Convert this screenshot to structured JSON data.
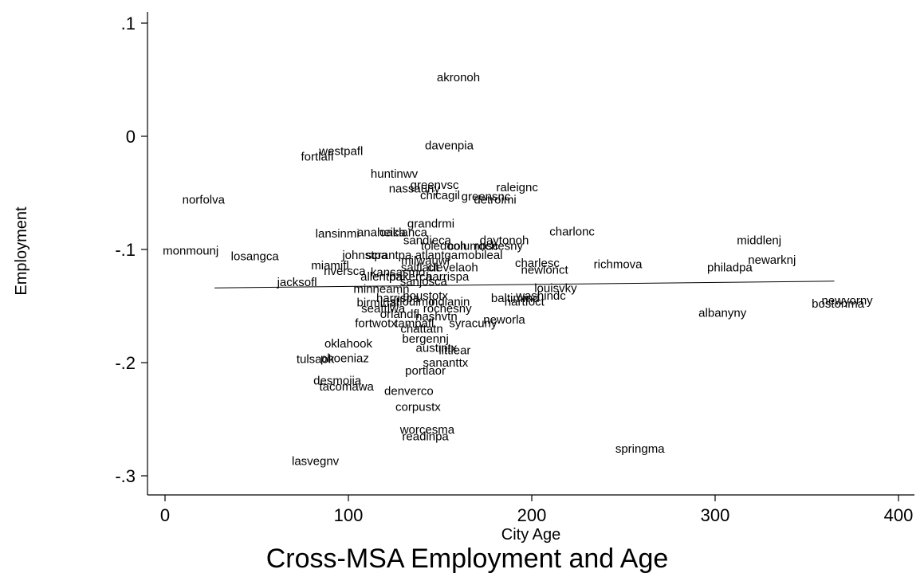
{
  "chart_data": {
    "type": "scatter",
    "title": "Cross-MSA Employment and Age",
    "xlabel": "City Age",
    "ylabel": "Employment",
    "xlim": [
      0,
      410
    ],
    "ylim": [
      -0.318,
      0.12
    ],
    "x_ticks": [
      0,
      100,
      200,
      300,
      400
    ],
    "x_tick_labels": [
      "0",
      "100",
      "200",
      "300",
      "400"
    ],
    "y_ticks": [
      0.1,
      0,
      -0.1,
      -0.2,
      -0.3
    ],
    "y_tick_labels": [
      ".1",
      "0",
      "-.1",
      "-.2",
      "-.3"
    ],
    "grid": false,
    "marker": "label",
    "points": [
      {
        "label": "akronoh",
        "x": 160,
        "y": 0.052
      },
      {
        "label": "davenpia",
        "x": 155,
        "y": -0.008
      },
      {
        "label": "westpafl",
        "x": 96,
        "y": -0.013
      },
      {
        "label": "fortlafl",
        "x": 83,
        "y": -0.018
      },
      {
        "label": "huntinwv",
        "x": 125,
        "y": -0.033
      },
      {
        "label": "greenvsc",
        "x": 147,
        "y": -0.043
      },
      {
        "label": "raleignc",
        "x": 192,
        "y": -0.045
      },
      {
        "label": "nassauny",
        "x": 136,
        "y": -0.046
      },
      {
        "label": "chicagil",
        "x": 150,
        "y": -0.052
      },
      {
        "label": "greensnc",
        "x": 175,
        "y": -0.053
      },
      {
        "label": "detroimi",
        "x": 180,
        "y": -0.056
      },
      {
        "label": "norfolva",
        "x": 21,
        "y": -0.056
      },
      {
        "label": "grandrmi",
        "x": 145,
        "y": -0.077
      },
      {
        "label": "charlonc",
        "x": 222,
        "y": -0.084
      },
      {
        "label": "lansinmi",
        "x": 94,
        "y": -0.086
      },
      {
        "label": "anaheica",
        "x": 118,
        "y": -0.085
      },
      {
        "label": "oaklanca",
        "x": 130,
        "y": -0.085
      },
      {
        "label": "sandieca",
        "x": 143,
        "y": -0.092
      },
      {
        "label": "daytonoh",
        "x": 185,
        "y": -0.092
      },
      {
        "label": "middlenj",
        "x": 324,
        "y": -0.092
      },
      {
        "label": "toledooh",
        "x": 152,
        "y": -0.097
      },
      {
        "label": "columbsc",
        "x": 168,
        "y": -0.097
      },
      {
        "label": "rochesny",
        "x": 182,
        "y": -0.097
      },
      {
        "label": "monmounj",
        "x": 14,
        "y": -0.101
      },
      {
        "label": "losangca",
        "x": 49,
        "y": -0.106
      },
      {
        "label": "johnstpa",
        "x": 109,
        "y": -0.105
      },
      {
        "label": "scrantpa",
        "x": 122,
        "y": -0.105
      },
      {
        "label": "atlantga",
        "x": 148,
        "y": -0.105
      },
      {
        "label": "mobileal",
        "x": 172,
        "y": -0.105
      },
      {
        "label": "newarknj",
        "x": 331,
        "y": -0.109
      },
      {
        "label": "charlesc",
        "x": 203,
        "y": -0.112
      },
      {
        "label": "richmova",
        "x": 247,
        "y": -0.113
      },
      {
        "label": "miamifl",
        "x": 90,
        "y": -0.114
      },
      {
        "label": "milwauwi",
        "x": 142,
        "y": -0.11
      },
      {
        "label": "saltlaut",
        "x": 139,
        "y": -0.116
      },
      {
        "label": "clevelaoh",
        "x": 157,
        "y": -0.116
      },
      {
        "label": "philadpa",
        "x": 308,
        "y": -0.116
      },
      {
        "label": "newlonct",
        "x": 207,
        "y": -0.118
      },
      {
        "label": "riversca",
        "x": 98,
        "y": -0.119
      },
      {
        "label": "kansasmo",
        "x": 127,
        "y": -0.12
      },
      {
        "label": "allentpa",
        "x": 118,
        "y": -0.124
      },
      {
        "label": "bakerca",
        "x": 134,
        "y": -0.124
      },
      {
        "label": "harrispa",
        "x": 154,
        "y": -0.124
      },
      {
        "label": "sanjosca",
        "x": 141,
        "y": -0.128
      },
      {
        "label": "jacksofl",
        "x": 72,
        "y": -0.129
      },
      {
        "label": "minneamn",
        "x": 118,
        "y": -0.135
      },
      {
        "label": "louisvky",
        "x": 213,
        "y": -0.134
      },
      {
        "label": "houstotx",
        "x": 142,
        "y": -0.141
      },
      {
        "label": "washindc",
        "x": 205,
        "y": -0.141
      },
      {
        "label": "harrispa",
        "x": 127,
        "y": -0.143
      },
      {
        "label": "baltimmd",
        "x": 191,
        "y": -0.143
      },
      {
        "label": "hartfoct",
        "x": 196,
        "y": -0.146
      },
      {
        "label": "birminal",
        "x": 116,
        "y": -0.147
      },
      {
        "label": "stlouimo",
        "x": 135,
        "y": -0.146
      },
      {
        "label": "indianin",
        "x": 155,
        "y": -0.146
      },
      {
        "label": "newyorny",
        "x": 372,
        "y": -0.145
      },
      {
        "label": "bostonma",
        "x": 367,
        "y": -0.148
      },
      {
        "label": "seattlwa",
        "x": 119,
        "y": -0.152
      },
      {
        "label": "rochesny",
        "x": 154,
        "y": -0.152
      },
      {
        "label": "albanyny",
        "x": 304,
        "y": -0.156
      },
      {
        "label": "orlandfl",
        "x": 128,
        "y": -0.157
      },
      {
        "label": "nashvtn",
        "x": 148,
        "y": -0.159
      },
      {
        "label": "neworla",
        "x": 185,
        "y": -0.162
      },
      {
        "label": "fortwotx",
        "x": 115,
        "y": -0.165
      },
      {
        "label": "tampafl",
        "x": 136,
        "y": -0.165
      },
      {
        "label": "syracuny",
        "x": 168,
        "y": -0.165
      },
      {
        "label": "chattatn",
        "x": 140,
        "y": -0.17
      },
      {
        "label": "bergennj",
        "x": 142,
        "y": -0.179
      },
      {
        "label": "oklahook",
        "x": 100,
        "y": -0.183
      },
      {
        "label": "austintx",
        "x": 148,
        "y": -0.187
      },
      {
        "label": "littlear",
        "x": 158,
        "y": -0.189
      },
      {
        "label": "tulsaok",
        "x": 82,
        "y": -0.197
      },
      {
        "label": "phoeniaz",
        "x": 98,
        "y": -0.196
      },
      {
        "label": "sananttx",
        "x": 153,
        "y": -0.2
      },
      {
        "label": "portlaor",
        "x": 142,
        "y": -0.207
      },
      {
        "label": "desmoiia",
        "x": 94,
        "y": -0.216
      },
      {
        "label": "tacomawa",
        "x": 99,
        "y": -0.221
      },
      {
        "label": "denverco",
        "x": 133,
        "y": -0.225
      },
      {
        "label": "corpustx",
        "x": 138,
        "y": -0.239
      },
      {
        "label": "worcesma",
        "x": 143,
        "y": -0.259
      },
      {
        "label": "readinpa",
        "x": 142,
        "y": -0.265
      },
      {
        "label": "springma",
        "x": 259,
        "y": -0.276
      },
      {
        "label": "lasvegnv",
        "x": 82,
        "y": -0.287
      }
    ],
    "fit_line": {
      "x": [
        27,
        365
      ],
      "y": [
        -0.134,
        -0.128
      ]
    }
  }
}
